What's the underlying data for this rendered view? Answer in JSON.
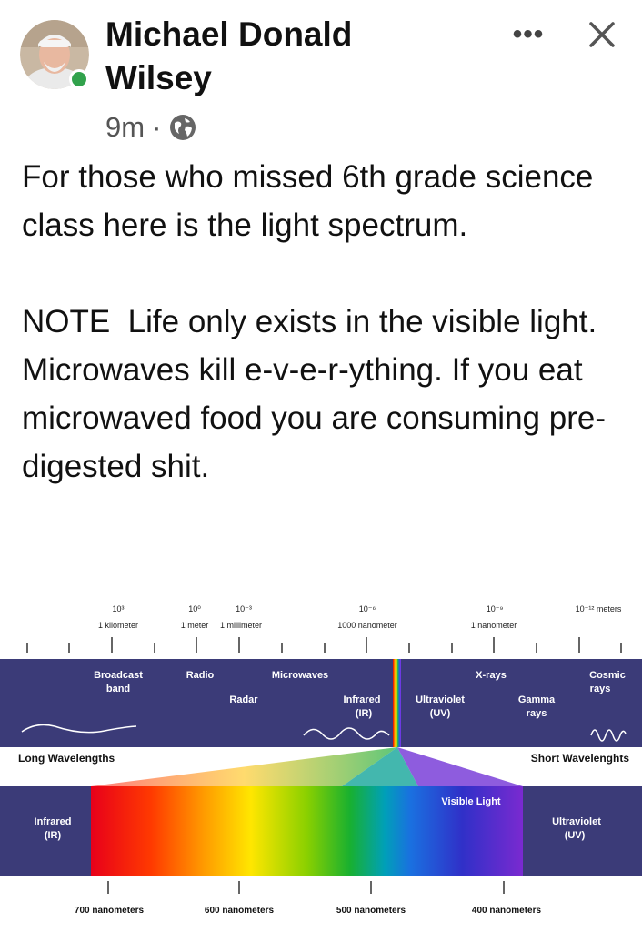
{
  "post": {
    "author": "Michael Donald Wilsey",
    "time": "9m",
    "separator": "·",
    "text": "For those who missed 6th grade science class here is the light spectrum.\n\nNOTE  Life only exists in the visible light. Microwaves kill e-v-e-r-ything. If you eat microwaved food you are consuming pre-digested shit.",
    "more_label": "•••",
    "icons": {
      "privacy": "globe-icon",
      "close": "close-icon",
      "more": "more-icon"
    }
  },
  "spectrum": {
    "scale": [
      {
        "exp": "10³",
        "name": "1 kilometer"
      },
      {
        "exp": "10⁰",
        "name": "1 meter"
      },
      {
        "exp": "10⁻³",
        "name": "1 millimeter"
      },
      {
        "exp": "10⁻⁶",
        "name": "1000 nanometer"
      },
      {
        "exp": "10⁻⁹",
        "name": "1 nanometer"
      },
      {
        "exp": "10⁻¹² meters",
        "name": ""
      }
    ],
    "bands": {
      "broadcast": [
        "Broadcast",
        "band"
      ],
      "radio": "Radio",
      "radar": "Radar",
      "microwaves": "Microwaves",
      "infrared": [
        "Infrared",
        "(IR)"
      ],
      "ultraviolet": [
        "Ultraviolet",
        "(UV)"
      ],
      "xrays": "X-rays",
      "gamma": [
        "Gamma",
        "rays"
      ],
      "cosmic": [
        "Cosmic",
        "rays"
      ]
    },
    "long_label": "Long Wavelengths",
    "short_label": "Short Wavelenghts",
    "visible_label": "Visible Light",
    "ir_label": [
      "Infrared",
      "(IR)"
    ],
    "uv_label": [
      "Ultraviolet",
      "(UV)"
    ],
    "nm_labels": [
      "700 nanometers",
      "600 nanometers",
      "500 nanometers",
      "400 nanometers"
    ],
    "colors": {
      "band": "#3b3b78",
      "bg": "#ffffff",
      "text": "#ffffff"
    }
  }
}
